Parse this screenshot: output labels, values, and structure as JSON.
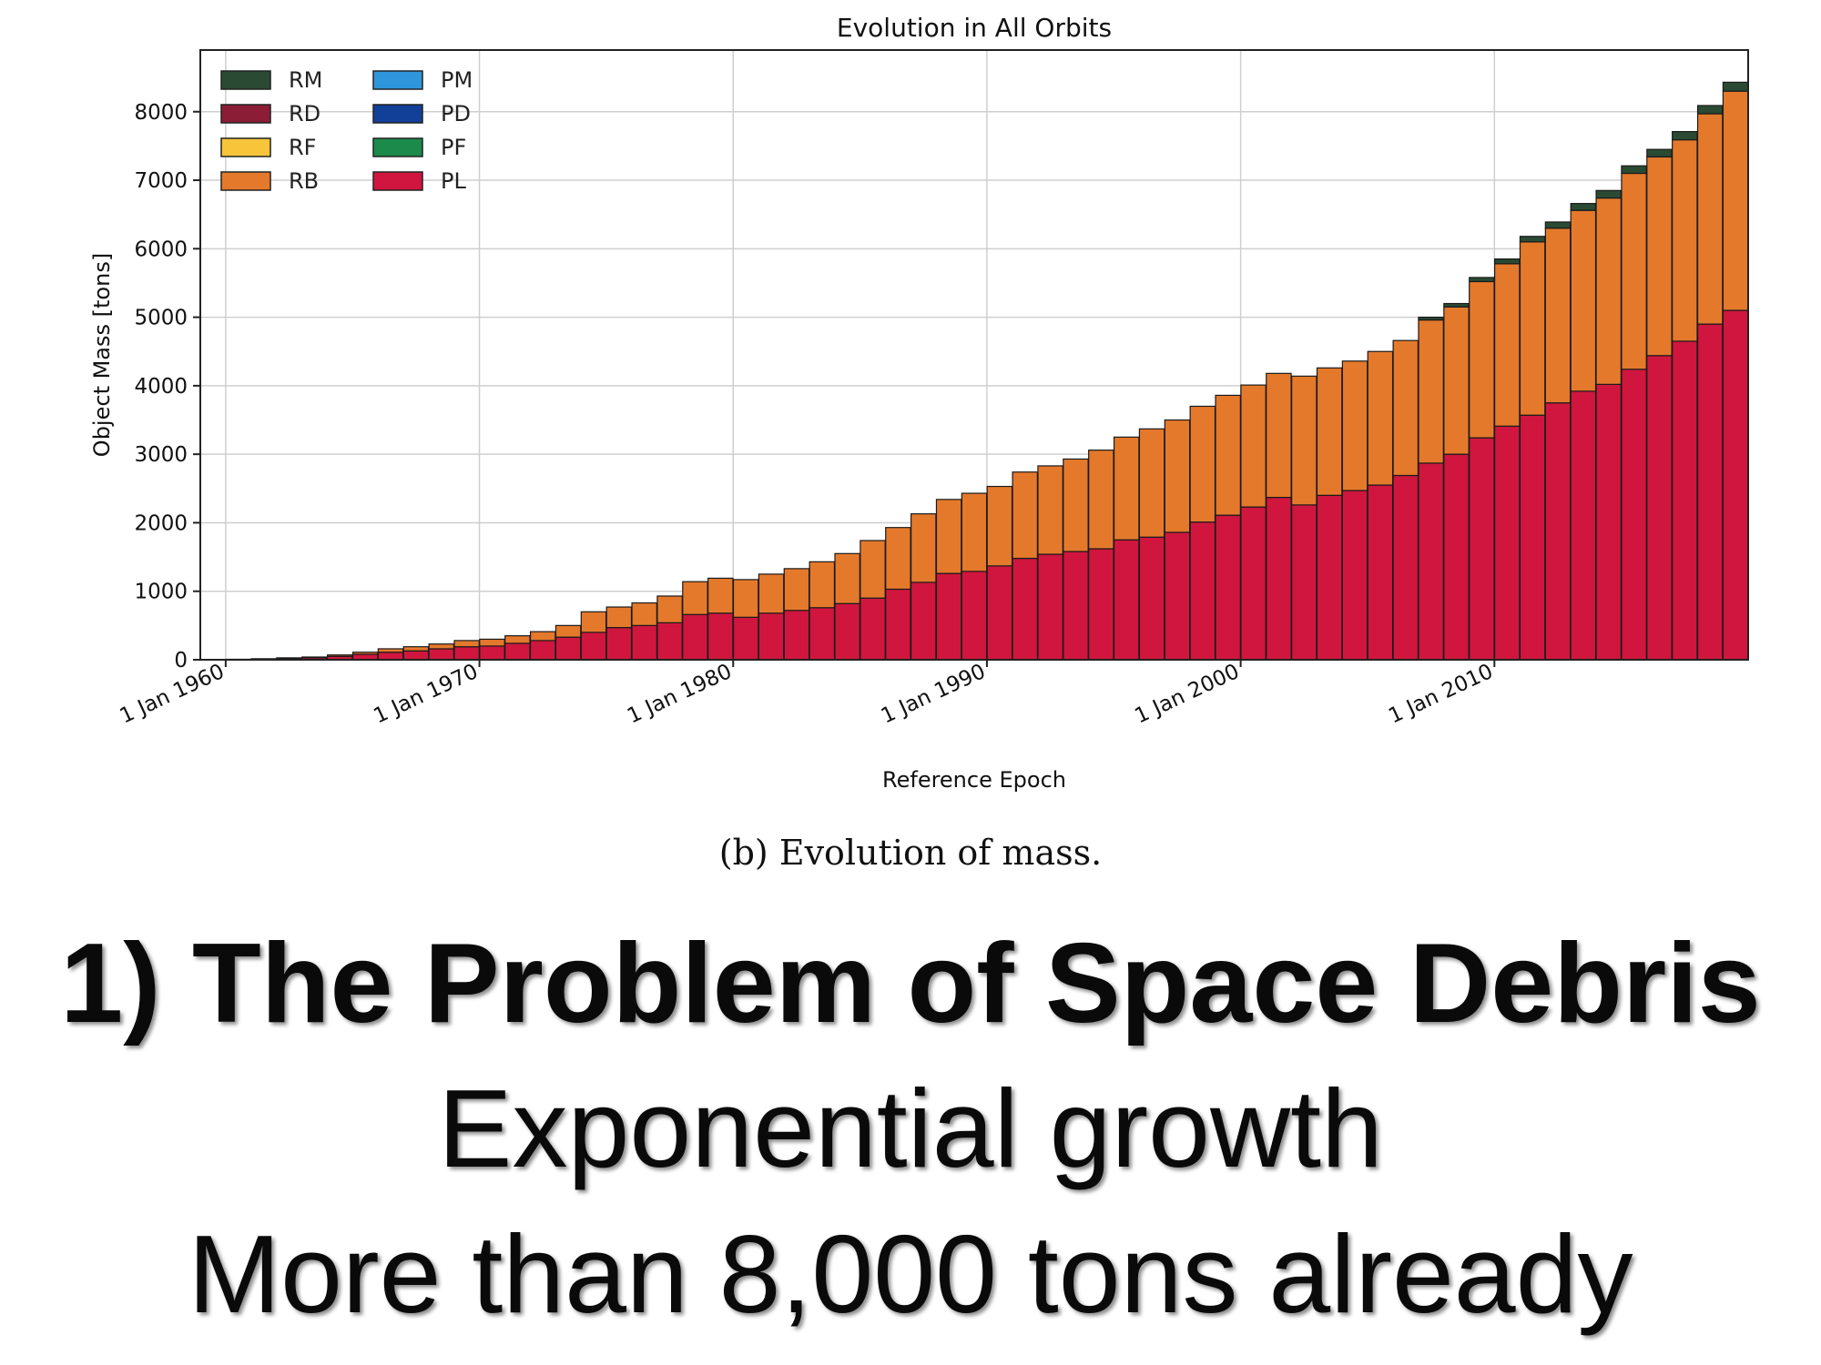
{
  "chart_data": {
    "type": "bar",
    "stacked": true,
    "title": "Evolution in All Orbits",
    "xlabel": "Reference Epoch",
    "ylabel": "Object Mass [tons]",
    "ylim": [
      0,
      8900
    ],
    "yticks": [
      0,
      1000,
      2000,
      3000,
      4000,
      5000,
      6000,
      7000,
      8000
    ],
    "xlim": [
      1959,
      2020
    ],
    "xticks": [
      1960,
      1970,
      1980,
      1990,
      2000,
      2010
    ],
    "xtick_labels": [
      "1 Jan 1960",
      "1 Jan 1970",
      "1 Jan 1980",
      "1 Jan 1990",
      "1 Jan 2000",
      "1 Jan 2010"
    ],
    "grid": true,
    "legend_position": "top-left",
    "legend": [
      "RM",
      "RD",
      "RF",
      "RB",
      "PM",
      "PD",
      "PF",
      "PL"
    ],
    "x": [
      1960,
      1961,
      1962,
      1963,
      1964,
      1965,
      1966,
      1967,
      1968,
      1969,
      1970,
      1971,
      1972,
      1973,
      1974,
      1975,
      1976,
      1977,
      1978,
      1979,
      1980,
      1981,
      1982,
      1983,
      1984,
      1985,
      1986,
      1987,
      1988,
      1989,
      1990,
      1991,
      1992,
      1993,
      1994,
      1995,
      1996,
      1997,
      1998,
      1999,
      2000,
      2001,
      2002,
      2003,
      2004,
      2005,
      2006,
      2007,
      2008,
      2009,
      2010,
      2011,
      2012,
      2013,
      2014,
      2015,
      2016,
      2017,
      2018,
      2019
    ],
    "series": [
      {
        "name": "PL",
        "color": "#d0163e",
        "values": [
          5,
          10,
          20,
          30,
          50,
          80,
          110,
          130,
          160,
          190,
          200,
          240,
          280,
          330,
          400,
          470,
          500,
          540,
          660,
          680,
          620,
          680,
          720,
          760,
          820,
          900,
          1030,
          1130,
          1260,
          1290,
          1370,
          1480,
          1540,
          1580,
          1620,
          1750,
          1790,
          1860,
          2010,
          2110,
          2230,
          2370,
          2260,
          2400,
          2470,
          2550,
          2690,
          2870,
          3000,
          3240,
          3410,
          3570,
          3750,
          3920,
          4020,
          4240,
          4440,
          4650,
          4900,
          5100
        ]
      },
      {
        "name": "PF",
        "color": "#1b8a4a",
        "values": [
          0,
          0,
          0,
          0,
          0,
          0,
          0,
          0,
          0,
          0,
          0,
          0,
          0,
          0,
          0,
          0,
          0,
          0,
          0,
          0,
          0,
          0,
          0,
          0,
          0,
          0,
          0,
          0,
          0,
          0,
          0,
          0,
          0,
          0,
          0,
          0,
          0,
          0,
          0,
          0,
          0,
          0,
          0,
          0,
          0,
          0,
          0,
          0,
          0,
          0,
          0,
          0,
          0,
          0,
          0,
          0,
          0,
          0,
          0,
          0
        ]
      },
      {
        "name": "PD",
        "color": "#123f98",
        "values": [
          0,
          0,
          0,
          0,
          0,
          0,
          0,
          0,
          0,
          0,
          0,
          0,
          0,
          0,
          0,
          0,
          0,
          0,
          0,
          0,
          0,
          0,
          0,
          0,
          0,
          0,
          0,
          0,
          0,
          0,
          0,
          0,
          0,
          0,
          0,
          0,
          0,
          0,
          0,
          0,
          0,
          0,
          0,
          0,
          0,
          0,
          0,
          0,
          0,
          0,
          0,
          0,
          0,
          0,
          0,
          0,
          0,
          0,
          0,
          0
        ]
      },
      {
        "name": "PM",
        "color": "#2f96dc",
        "values": [
          0,
          0,
          0,
          0,
          0,
          0,
          0,
          0,
          0,
          0,
          0,
          0,
          0,
          0,
          0,
          0,
          0,
          0,
          0,
          0,
          0,
          0,
          0,
          0,
          0,
          0,
          0,
          0,
          0,
          0,
          0,
          0,
          0,
          0,
          0,
          0,
          0,
          0,
          0,
          0,
          0,
          0,
          0,
          0,
          0,
          0,
          0,
          0,
          0,
          0,
          0,
          0,
          0,
          0,
          0,
          0,
          0,
          0,
          0,
          0
        ]
      },
      {
        "name": "RB",
        "color": "#e4792c",
        "values": [
          2,
          5,
          8,
          10,
          20,
          30,
          50,
          60,
          70,
          90,
          100,
          110,
          130,
          170,
          300,
          300,
          330,
          390,
          480,
          510,
          550,
          570,
          610,
          670,
          730,
          840,
          900,
          1000,
          1080,
          1140,
          1160,
          1260,
          1290,
          1350,
          1440,
          1500,
          1580,
          1640,
          1690,
          1750,
          1780,
          1810,
          1880,
          1860,
          1890,
          1950,
          1970,
          2090,
          2150,
          2280,
          2370,
          2530,
          2550,
          2640,
          2720,
          2860,
          2900,
          2940,
          3070,
          3200
        ]
      },
      {
        "name": "RF",
        "color": "#f8c43a",
        "values": [
          0,
          0,
          0,
          0,
          0,
          0,
          0,
          0,
          0,
          0,
          0,
          0,
          0,
          0,
          0,
          0,
          0,
          0,
          0,
          0,
          0,
          0,
          0,
          0,
          0,
          0,
          0,
          0,
          0,
          0,
          0,
          0,
          0,
          0,
          0,
          0,
          0,
          0,
          0,
          0,
          0,
          0,
          0,
          0,
          0,
          0,
          0,
          0,
          0,
          0,
          0,
          0,
          0,
          0,
          0,
          0,
          0,
          0,
          0,
          0
        ]
      },
      {
        "name": "RD",
        "color": "#8c1d36",
        "values": [
          0,
          0,
          0,
          0,
          0,
          0,
          0,
          0,
          0,
          0,
          0,
          0,
          0,
          0,
          0,
          0,
          0,
          0,
          0,
          0,
          0,
          0,
          0,
          0,
          0,
          0,
          0,
          0,
          0,
          0,
          0,
          0,
          0,
          0,
          0,
          0,
          0,
          0,
          0,
          0,
          0,
          0,
          0,
          0,
          0,
          0,
          0,
          0,
          0,
          0,
          0,
          0,
          0,
          0,
          0,
          0,
          0,
          0,
          0,
          0
        ]
      },
      {
        "name": "RM",
        "color": "#2a4a34",
        "values": [
          0,
          0,
          0,
          0,
          0,
          0,
          0,
          0,
          0,
          0,
          0,
          0,
          0,
          0,
          0,
          0,
          0,
          0,
          0,
          0,
          0,
          0,
          0,
          0,
          0,
          0,
          0,
          0,
          0,
          0,
          0,
          0,
          0,
          0,
          0,
          0,
          0,
          0,
          0,
          0,
          0,
          0,
          0,
          0,
          0,
          0,
          0,
          40,
          50,
          60,
          70,
          80,
          90,
          100,
          110,
          110,
          110,
          120,
          120,
          130
        ]
      }
    ]
  },
  "legend_colors": {
    "RM": "#2a4a34",
    "RD": "#8c1d36",
    "RF": "#f8c43a",
    "RB": "#e4792c",
    "PM": "#2f96dc",
    "PD": "#123f98",
    "PF": "#1b8a4a",
    "PL": "#d0163e"
  },
  "caption": "(b) Evolution of mass.",
  "slide": {
    "heading": "1) The Problem of Space Debris",
    "line2": "Exponential growth",
    "line3": "More than 8,000 tons already"
  }
}
